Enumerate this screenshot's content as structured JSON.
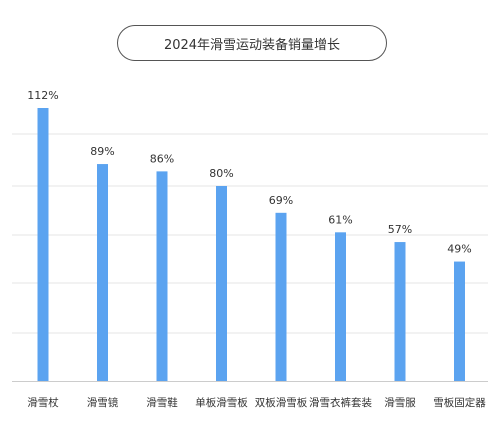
{
  "chart_data": {
    "type": "bar",
    "title": "2024年滑雪运动装备销量增长",
    "categories": [
      "滑雪杖",
      "滑雪镜",
      "滑雪鞋",
      "单板滑雪板",
      "双板滑雪板",
      "滑雪衣裤套装",
      "滑雪服",
      "雪板固定器"
    ],
    "values": [
      112,
      89,
      86,
      80,
      69,
      61,
      57,
      49
    ],
    "value_labels": [
      "112%",
      "89%",
      "86%",
      "80%",
      "69%",
      "61%",
      "57%",
      "49%"
    ],
    "ylim": [
      0,
      120
    ],
    "grid": true,
    "bar_color": "#5ba3f0",
    "grid_color": "#e6e6e6",
    "axis_color": "#cccccc",
    "text_color": "#333333"
  }
}
